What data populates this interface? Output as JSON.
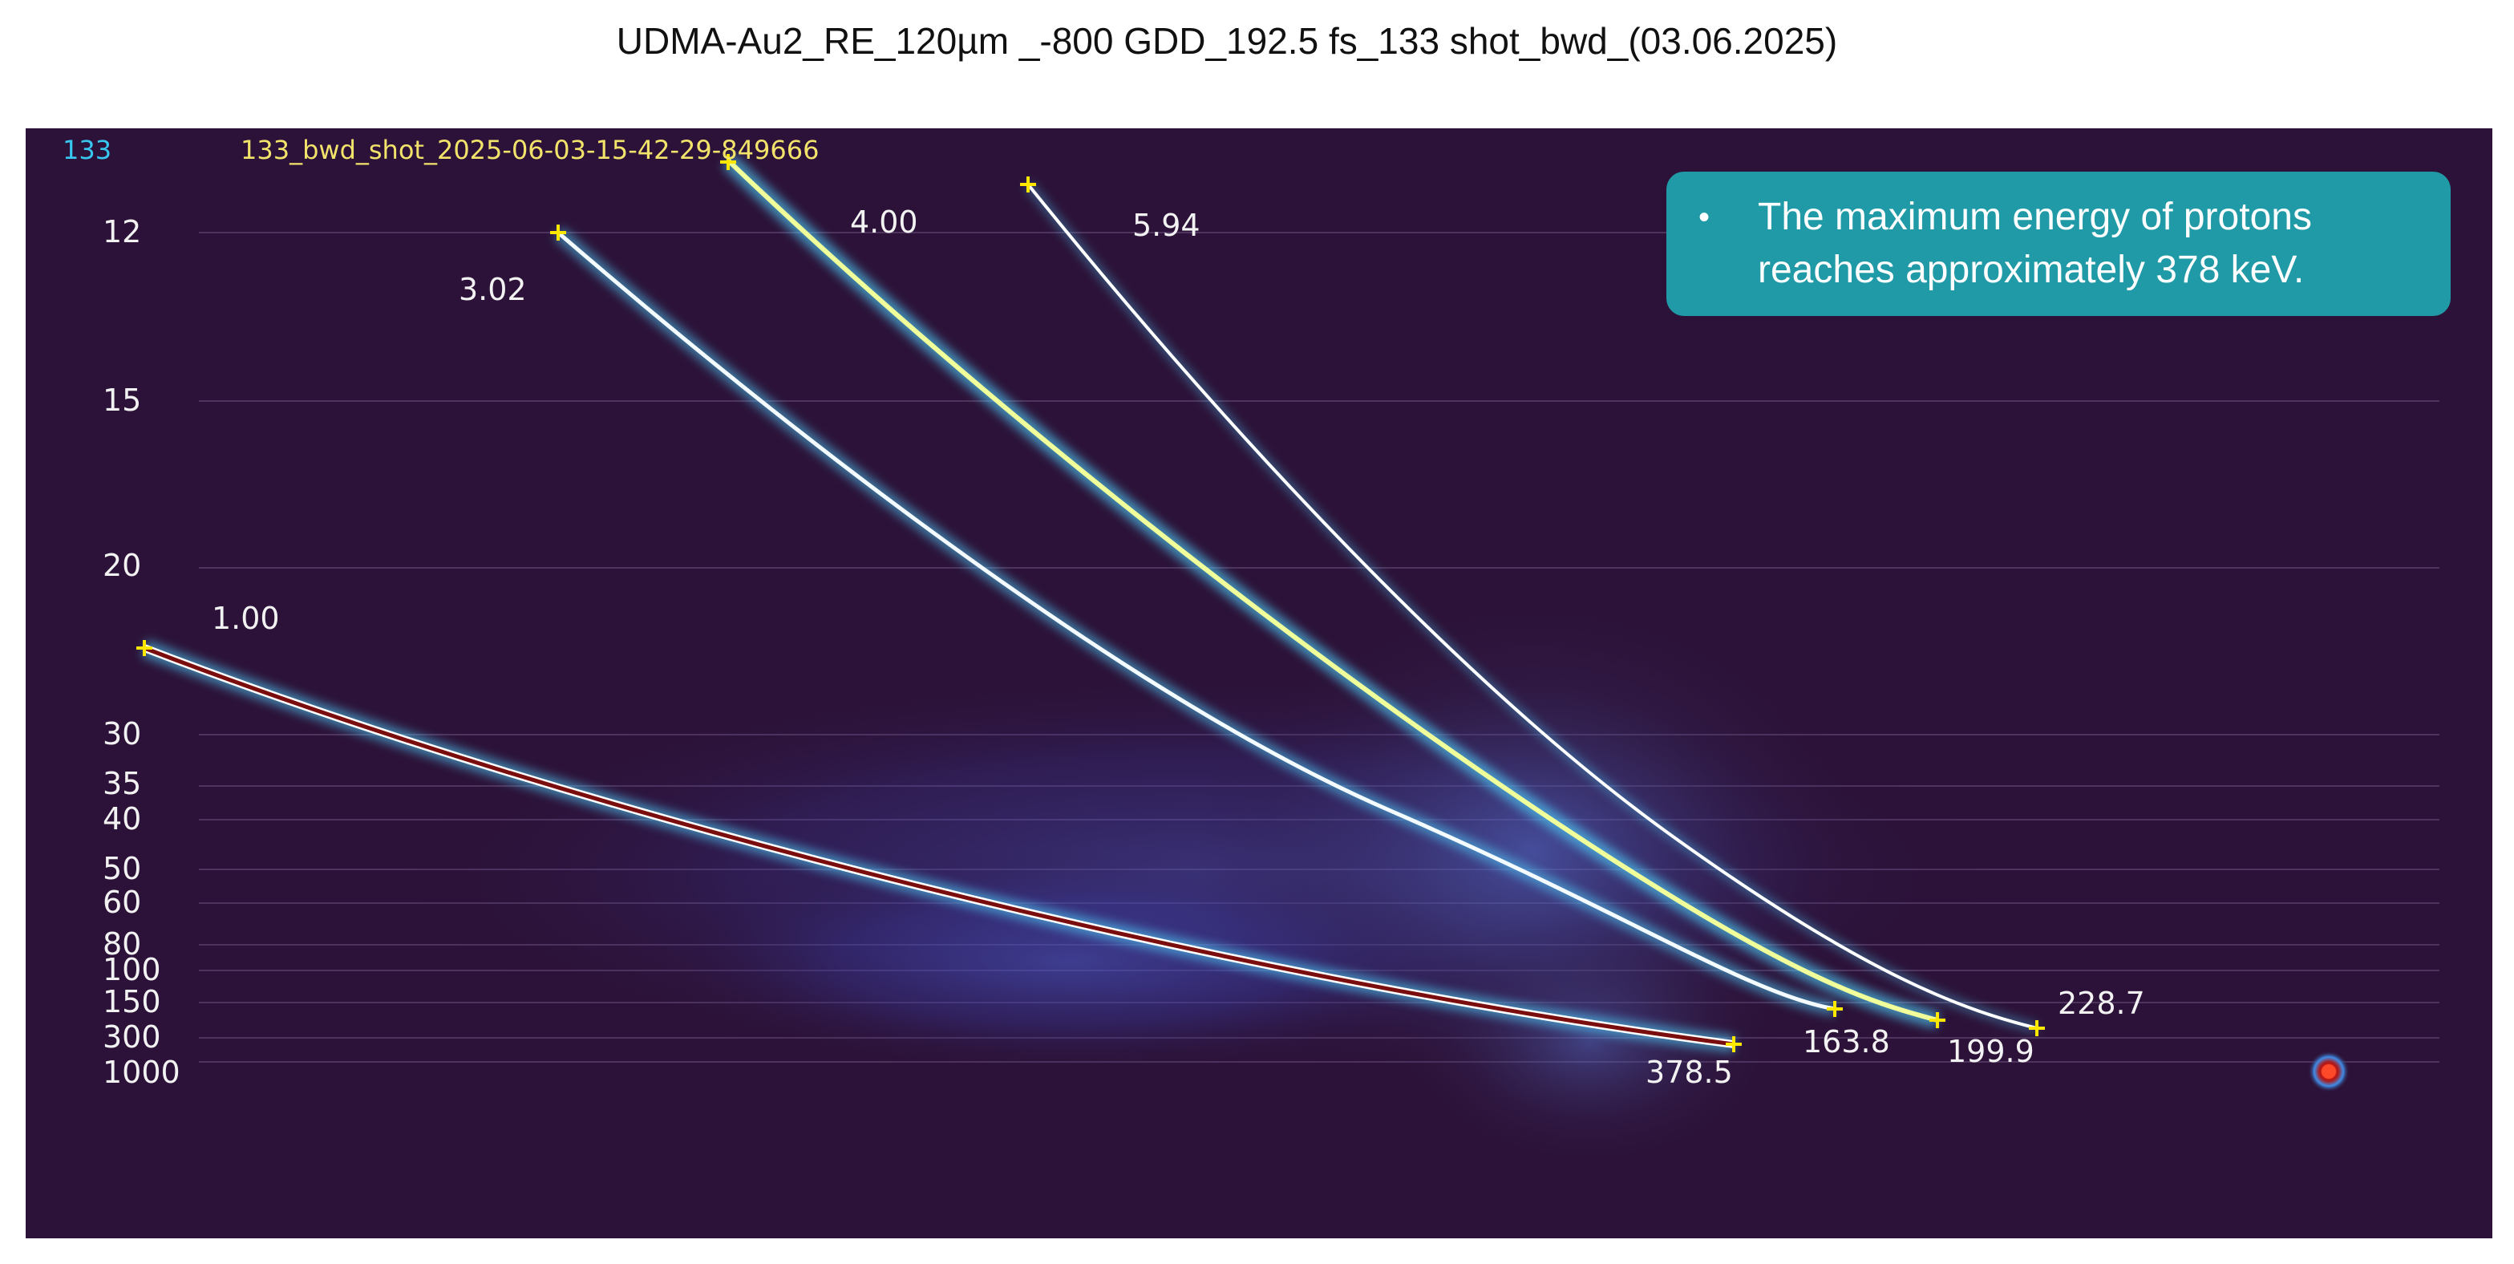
{
  "title": "UDMA-Au2_RE_120µm _-800 GDD_192.5 fs_133 shot_bwd_(03.06.2025)",
  "image": {
    "shot_number": "133",
    "shot_file": "133_bwd_shot_2025-06-03-15-42-29-849666",
    "axis_labels": [
      "12",
      "15",
      "20",
      "30",
      "35",
      "40",
      "50",
      "60",
      "80",
      "100",
      "150",
      "300",
      "1000"
    ],
    "trace_start_labels": [
      "1.00",
      "3.02",
      "4.00",
      "5.94"
    ],
    "trace_end_labels": [
      "378.5",
      "163.8",
      "199.9",
      "228.7"
    ]
  },
  "callout": {
    "bullet": "•",
    "text": "The maximum energy of protons reaches approximately 378 keV."
  },
  "colors": {
    "background": "#2c1238",
    "marker": "#ffe800",
    "text": "#f2f2f2",
    "file_label": "#f2e36b",
    "shot_label": "#38c7f0",
    "callout": "#1f9aa6"
  },
  "icons": {
    "marker": "plus-marker-icon",
    "zero_point": "zero-point-icon"
  }
}
